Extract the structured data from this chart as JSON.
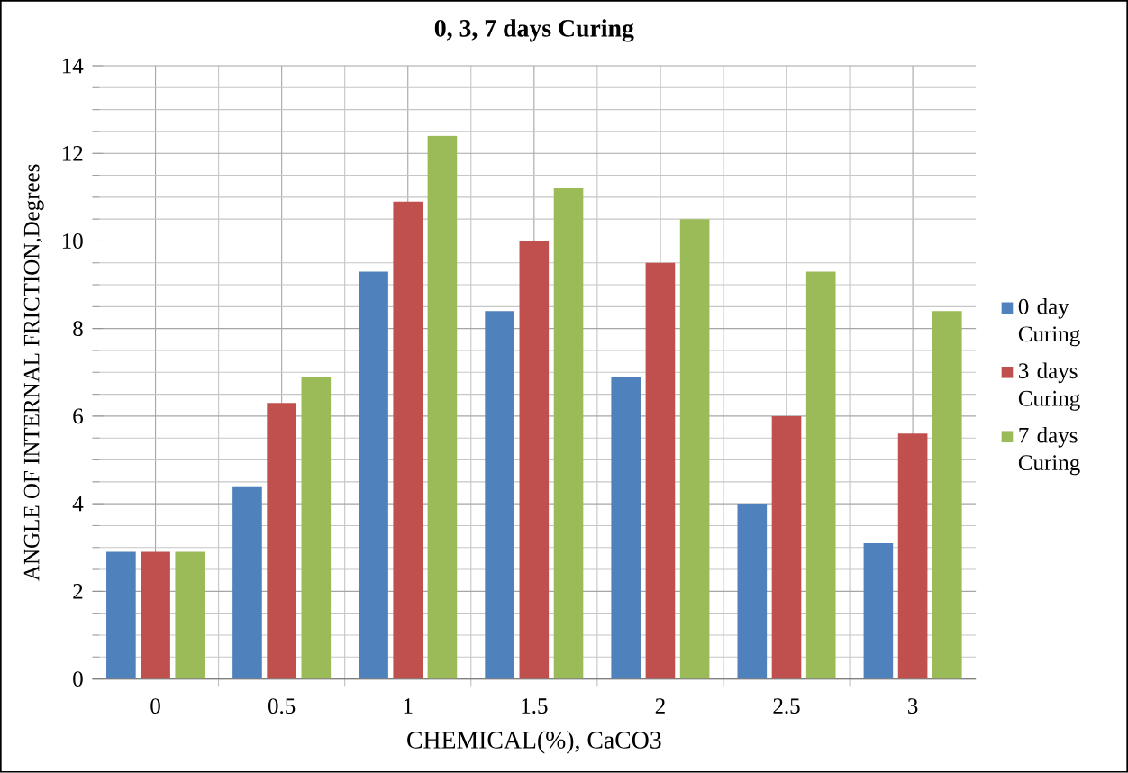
{
  "chart_data": {
    "type": "bar",
    "title": "0, 3, 7 days Curing",
    "xlabel": "CHEMICAL(%), CaCO3",
    "ylabel": "ANGLE OF INTERNAL FRICTION,Degrees",
    "categories": [
      "0",
      "0.5",
      "1",
      "1.5",
      "2",
      "2.5",
      "3"
    ],
    "series": [
      {
        "name": "0 day Curing",
        "color": "#4f81bd",
        "values": [
          2.9,
          4.4,
          9.3,
          8.4,
          6.9,
          4.0,
          3.1
        ]
      },
      {
        "name": "3 days Curing",
        "color": "#c0504d",
        "values": [
          2.9,
          6.3,
          10.9,
          10.0,
          9.5,
          6.0,
          5.6
        ]
      },
      {
        "name": "7 days Curing",
        "color": "#9bbb59",
        "values": [
          2.9,
          6.9,
          12.4,
          11.2,
          10.5,
          9.3,
          8.4
        ]
      }
    ],
    "ylim": [
      0,
      14
    ],
    "yticks": [
      0,
      2,
      4,
      6,
      8,
      10,
      12,
      14
    ],
    "grid": true,
    "legend": "right"
  }
}
